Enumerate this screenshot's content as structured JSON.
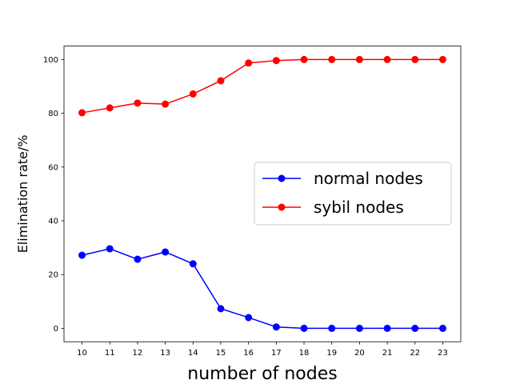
{
  "chart_data": {
    "type": "line",
    "x": [
      10,
      11,
      12,
      13,
      14,
      15,
      16,
      17,
      18,
      19,
      20,
      21,
      22,
      23
    ],
    "xlabel": "number of nodes",
    "ylabel": "Elimination rate/%",
    "xlim": [
      9.35,
      23.65
    ],
    "ylim": [
      -5,
      105
    ],
    "xticks": [
      10,
      11,
      12,
      13,
      14,
      15,
      16,
      17,
      18,
      19,
      20,
      21,
      22,
      23
    ],
    "yticks": [
      0,
      20,
      40,
      60,
      80,
      100
    ],
    "grid": false,
    "legend_position": "center-right",
    "series": [
      {
        "name": "normal nodes",
        "color": "#0000ff",
        "marker": "circle",
        "values": [
          27.2,
          29.6,
          25.7,
          28.4,
          24.0,
          7.3,
          4.0,
          0.5,
          0,
          0,
          0,
          0,
          0,
          0
        ]
      },
      {
        "name": "sybil nodes",
        "color": "#ff0000",
        "marker": "circle",
        "values": [
          80.2,
          82.0,
          83.8,
          83.4,
          87.2,
          92.1,
          98.7,
          99.6,
          100,
          100,
          100,
          100,
          100,
          100
        ]
      }
    ]
  }
}
